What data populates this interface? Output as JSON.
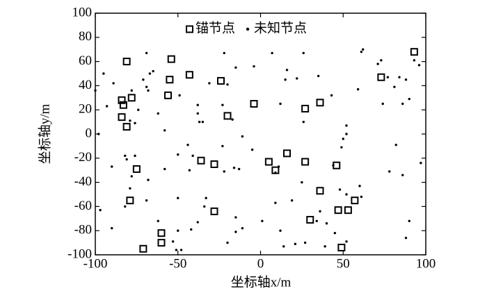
{
  "chart_data": {
    "type": "scatter",
    "x_label": "坐标轴x/m",
    "y_label": "坐标轴y/m",
    "xlim": [
      -100,
      100
    ],
    "xticks": [
      -100,
      -50,
      0,
      50,
      100
    ],
    "ylim": [
      -100,
      100
    ],
    "yticks": [
      -100,
      -80,
      -60,
      -40,
      -20,
      0,
      20,
      40,
      60,
      80,
      100
    ],
    "grid": false,
    "legend": "top",
    "series": [
      {
        "name": "锚节点",
        "marker": "square",
        "color": "#000000",
        "x": [
          -81,
          -54,
          -43,
          -55,
          -56,
          -24,
          -84,
          -83,
          -78,
          -84,
          -81,
          -20,
          -4,
          27,
          36,
          93,
          73,
          16,
          -36,
          -28,
          5,
          9,
          27,
          46,
          36,
          -75,
          -79,
          57,
          47,
          53,
          -28,
          30,
          -60,
          -60,
          -71,
          49
        ],
        "values": [
          60,
          62,
          49,
          45,
          32,
          44,
          28,
          24,
          30,
          14,
          6,
          15,
          25,
          21,
          26,
          68,
          47,
          -16,
          -22,
          -25,
          -23,
          -30,
          -23,
          -26,
          -47,
          -29,
          -55,
          -55,
          -63,
          -63,
          -64,
          -71,
          -82,
          -90,
          -95,
          -94
        ]
      },
      {
        "name": "未知节点",
        "marker": "dot",
        "color": "#000000",
        "x": [
          -69,
          -22,
          7,
          26,
          62,
          61,
          73,
          96,
          93,
          -95,
          -100,
          -89,
          -65,
          -67,
          -71,
          -69,
          -68,
          -78,
          -49,
          -62,
          -74,
          -79,
          -76,
          -93,
          -98,
          -58,
          -38,
          -38,
          -37,
          -35,
          -31,
          -15,
          -20,
          -23,
          -4,
          16,
          35,
          43,
          22,
          26,
          12,
          52,
          52,
          50,
          49,
          44,
          15,
          -11,
          -17,
          71,
          84,
          88,
          81,
          77,
          86,
          90,
          74,
          59,
          82,
          97,
          78,
          86,
          -90,
          -82,
          -76,
          -81,
          -78,
          -79,
          -68,
          -69,
          -82,
          -97,
          -90,
          -58,
          -50,
          -44,
          -41,
          -43,
          -22,
          -16,
          -13,
          -23,
          -50,
          -33,
          -34,
          -38,
          -42,
          -15,
          -15,
          -11,
          -20,
          -50,
          -51,
          -48,
          -53,
          1,
          9,
          12,
          14,
          21,
          27,
          25,
          19,
          36,
          40,
          34,
          39,
          45,
          52,
          52,
          60,
          61,
          88,
          90,
          48,
          9,
          11,
          -5,
          -62
        ],
        "values": [
          67,
          67,
          67,
          67,
          70,
          68,
          61,
          57,
          61,
          50,
          36,
          42,
          52,
          50,
          45,
          39,
          36,
          36,
          32,
          17,
          20,
          11,
          9,
          23,
          0,
          3,
          24,
          17,
          10,
          10,
          42,
          55,
          41,
          24,
          56,
          53,
          48,
          32,
          46,
          10,
          25,
          7,
          0,
          -4,
          -11,
          -26,
          45,
          -2,
          12,
          58,
          47,
          45,
          39,
          47,
          25,
          29,
          25,
          37,
          -9,
          -24,
          -31,
          -34,
          -27,
          -18,
          -18,
          -21,
          -35,
          -45,
          -38,
          -55,
          -60,
          -63,
          -78,
          -29,
          -17,
          -9,
          -18,
          -30,
          -31,
          -28,
          -29,
          -10,
          -53,
          -53,
          -60,
          -73,
          -79,
          -69,
          -81,
          -78,
          -90,
          -80,
          -96,
          -96,
          -89,
          -72,
          -57,
          -80,
          -93,
          -91,
          -90,
          -40,
          -55,
          -64,
          -74,
          -72,
          -93,
          -82,
          -89,
          -50,
          -43,
          -52,
          -86,
          -72,
          -46,
          -32,
          -27,
          -13,
          -72
        ]
      }
    ]
  }
}
